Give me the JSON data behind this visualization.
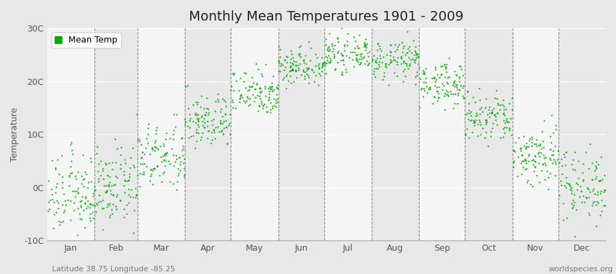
{
  "title": "Monthly Mean Temperatures 1901 - 2009",
  "ylabel": "Temperature",
  "xlabel": "",
  "background_color": "#e8e8e8",
  "plot_bg_light": "#f5f5f5",
  "plot_bg_dark": "#e8e8e8",
  "dot_color": "#00aa00",
  "dot_size": 2.5,
  "ylim": [
    -10,
    30
  ],
  "yticks": [
    -10,
    0,
    10,
    20,
    30
  ],
  "ytick_labels": [
    "-10C",
    "0C",
    "10C",
    "20C",
    "30C"
  ],
  "months": [
    "Jan",
    "Feb",
    "Mar",
    "Apr",
    "May",
    "Jun",
    "Jul",
    "Aug",
    "Sep",
    "Oct",
    "Nov",
    "Dec"
  ],
  "month_means": [
    -1.5,
    0.0,
    5.5,
    12.5,
    18.0,
    23.0,
    25.0,
    24.0,
    19.5,
    13.0,
    6.0,
    0.5
  ],
  "month_stds": [
    3.8,
    3.5,
    3.2,
    2.5,
    2.2,
    1.8,
    1.5,
    1.8,
    2.0,
    2.5,
    3.0,
    3.5
  ],
  "n_years": 109,
  "legend_label": "Mean Temp",
  "footer_left": "Latitude 38.75 Longitude -85.25",
  "footer_right": "worldspecies.org",
  "title_fontsize": 14,
  "axis_label_fontsize": 9,
  "tick_fontsize": 9,
  "footer_fontsize": 8
}
